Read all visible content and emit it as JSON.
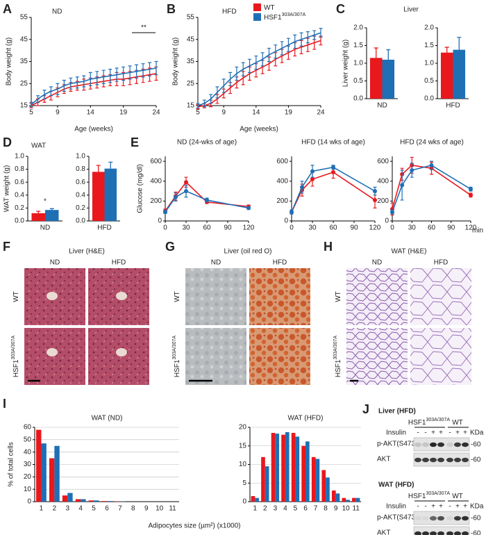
{
  "panel_labels": [
    "A",
    "B",
    "C",
    "D",
    "E",
    "F",
    "G",
    "H",
    "I",
    "J"
  ],
  "chart_data": [
    {
      "type": "line",
      "title": "ND",
      "xlabel": "Age (weeks)",
      "ylabel": "Body weight (g)",
      "annotation": "**",
      "x": [
        5,
        6,
        7,
        8,
        9,
        10,
        11,
        12,
        13,
        14,
        15,
        16,
        17,
        18,
        19,
        20,
        21,
        22,
        23,
        24
      ],
      "xlim": [
        5,
        24
      ],
      "xticks": [
        5,
        9,
        14,
        19,
        24
      ],
      "ylim": [
        15,
        55
      ],
      "yticks": [
        15,
        25,
        35,
        45,
        55
      ],
      "series": [
        {
          "color": "#e8181d",
          "values": [
            15,
            16.5,
            18,
            19.5,
            21,
            22.5,
            23.5,
            24,
            24.5,
            25,
            25.5,
            26,
            26.5,
            27,
            27,
            27.5,
            28,
            28.5,
            29,
            29.5
          ],
          "errors": [
            1,
            1.5,
            1.5,
            2,
            2,
            2,
            2,
            2,
            2.5,
            2.5,
            2.5,
            2.5,
            2.5,
            3,
            3,
            3,
            3,
            3,
            3,
            3
          ]
        },
        {
          "color": "#1f6fb5",
          "values": [
            15.5,
            18,
            20,
            21.5,
            22.5,
            24,
            25,
            25.5,
            26,
            27,
            27.5,
            28,
            28.5,
            29,
            29.5,
            30,
            30.5,
            31,
            31.5,
            32
          ],
          "errors": [
            1,
            1.5,
            2,
            2,
            2.5,
            2.5,
            2.5,
            2.5,
            2.5,
            3,
            3,
            3,
            3,
            3,
            3,
            3,
            3,
            3,
            3,
            3
          ]
        }
      ]
    },
    {
      "type": "line",
      "title": "HFD",
      "xlabel": "Age (weeks)",
      "ylabel": "Body weight (g)",
      "x": [
        5,
        6,
        7,
        8,
        9,
        10,
        11,
        12,
        13,
        14,
        15,
        16,
        17,
        18,
        19,
        20,
        21,
        22,
        23,
        24
      ],
      "xlim": [
        5,
        24
      ],
      "xticks": [
        5,
        9,
        14,
        19,
        24
      ],
      "ylim": [
        15,
        55
      ],
      "yticks": [
        15,
        25,
        35,
        45,
        55
      ],
      "series": [
        {
          "name": "WT",
          "color": "#e8181d",
          "values": [
            14.5,
            15,
            16,
            18,
            20.5,
            23,
            25.5,
            27.5,
            29.5,
            31,
            32.5,
            34,
            36,
            37.5,
            39,
            40.5,
            41.5,
            42.5,
            43.5,
            44.5
          ],
          "errors": [
            1,
            1,
            1.5,
            2,
            2,
            2.5,
            2.5,
            3,
            3,
            3,
            3,
            3,
            3,
            3,
            3,
            3,
            3,
            3,
            3,
            2
          ]
        },
        {
          "name": "HSF1",
          "name_sup": "303A/307A",
          "color": "#1f6fb5",
          "values": [
            15,
            16,
            18,
            21,
            24,
            27,
            29.5,
            31.5,
            33,
            34.5,
            36,
            38,
            39.5,
            41,
            42.5,
            44,
            45,
            46,
            47,
            48
          ],
          "errors": [
            1,
            1.5,
            2,
            2.5,
            3,
            3,
            3,
            3,
            3,
            3,
            3,
            3,
            3,
            3,
            3,
            3,
            3,
            2.5,
            2,
            2
          ]
        }
      ]
    },
    {
      "type": "bar",
      "title": "Liver",
      "ylabel": "Liver weight (g)",
      "categories": [
        "ND"
      ],
      "ylim": [
        0,
        2
      ],
      "yticks": [
        {
          "value": 0,
          "label": "0.0"
        },
        0.5,
        {
          "value": 1,
          "label": "1.0"
        },
        1.5,
        {
          "value": 2,
          "label": "2.0"
        }
      ],
      "series": [
        {
          "color": "#e8181d",
          "values": [
            1.15
          ],
          "errors": [
            0.28
          ]
        },
        {
          "color": "#1f6fb5",
          "values": [
            1.1
          ],
          "errors": [
            0.28
          ]
        }
      ]
    },
    {
      "type": "bar",
      "categories": [
        "HFD"
      ],
      "ylim": [
        0,
        2
      ],
      "yticks": [
        {
          "value": 0,
          "label": "0.0"
        },
        0.5,
        {
          "value": 1,
          "label": "1.0"
        },
        1.5,
        {
          "value": 2,
          "label": "2.0"
        }
      ],
      "series": [
        {
          "color": "#e8181d",
          "values": [
            1.3
          ],
          "errors": [
            0.15
          ]
        },
        {
          "color": "#1f6fb5",
          "values": [
            1.38
          ],
          "errors": [
            0.35
          ]
        }
      ]
    },
    {
      "type": "bar",
      "title": "WAT",
      "ylabel": "WAT weight (g)",
      "annotation": "*",
      "categories": [
        "ND"
      ],
      "ylim": [
        0,
        1
      ],
      "yticks": [
        {
          "value": 0,
          "label": "0.0"
        },
        0.2,
        0.4,
        0.6,
        0.8,
        {
          "value": 1,
          "label": "1.0"
        }
      ],
      "series": [
        {
          "color": "#e8181d",
          "values": [
            0.12
          ],
          "errors": [
            0.03
          ]
        },
        {
          "color": "#1f6fb5",
          "values": [
            0.17
          ],
          "errors": [
            0.02
          ]
        }
      ]
    },
    {
      "type": "bar",
      "categories": [
        "HFD"
      ],
      "ylim": [
        0,
        1
      ],
      "yticks": [
        {
          "value": 0,
          "label": "0.0"
        },
        0.2,
        0.4,
        0.6,
        0.8,
        {
          "value": 1,
          "label": "1.0"
        }
      ],
      "series": [
        {
          "color": "#e8181d",
          "values": [
            0.76
          ],
          "errors": [
            0.1
          ]
        },
        {
          "color": "#1f6fb5",
          "values": [
            0.81
          ],
          "errors": [
            0.1
          ]
        }
      ]
    },
    {
      "type": "line",
      "markers": true,
      "title": "ND (24-wks of age)",
      "ylabel": "Glucose (mg/dl)",
      "x": [
        0,
        15,
        30,
        60,
        120
      ],
      "xlim": [
        0,
        120
      ],
      "xticks": [
        0,
        30,
        60,
        90,
        120
      ],
      "ylim": [
        0,
        650
      ],
      "yticks": [
        0,
        200,
        400,
        600
      ],
      "series": [
        {
          "color": "#e8181d",
          "values": [
            100,
            250,
            390,
            190,
            145
          ],
          "errors": [
            20,
            40,
            50,
            15,
            15
          ]
        },
        {
          "color": "#1f6fb5",
          "values": [
            90,
            240,
            300,
            210,
            130
          ],
          "errors": [
            15,
            40,
            60,
            20,
            15
          ]
        }
      ]
    },
    {
      "type": "line",
      "markers": true,
      "title": "HFD (14 wks of age)",
      "x": [
        0,
        15,
        30,
        60,
        120
      ],
      "xlim": [
        0,
        120
      ],
      "xticks": [
        0,
        30,
        60,
        90,
        120
      ],
      "ylim": [
        0,
        650
      ],
      "yticks": [
        0,
        200,
        400,
        600
      ],
      "series": [
        {
          "color": "#e8181d",
          "values": [
            90,
            310,
            420,
            490,
            210
          ],
          "errors": [
            20,
            60,
            70,
            60,
            80
          ]
        },
        {
          "color": "#1f6fb5",
          "values": [
            90,
            340,
            500,
            540,
            300
          ],
          "errors": [
            20,
            60,
            60,
            20,
            40
          ]
        }
      ]
    },
    {
      "type": "line",
      "markers": true,
      "title": "HFD (24 wks of age)",
      "xunit": "min",
      "x": [
        0,
        15,
        30,
        60,
        120
      ],
      "xlim": [
        0,
        120
      ],
      "xticks": [
        0,
        30,
        60,
        90,
        120
      ],
      "ylim": [
        0,
        650
      ],
      "yticks": [
        0,
        200,
        400,
        600
      ],
      "series": [
        {
          "color": "#e8181d",
          "values": [
            120,
            470,
            560,
            530,
            260
          ],
          "errors": [
            60,
            60,
            80,
            60,
            20
          ]
        },
        {
          "color": "#1f6fb5",
          "values": [
            90,
            360,
            510,
            560,
            320
          ],
          "errors": [
            20,
            150,
            70,
            40,
            20
          ]
        }
      ]
    },
    {
      "type": "bar",
      "grid": true,
      "title": "WAT (ND)",
      "ylabel": "% of total cells",
      "xlabel": "Adipocytes size (µm²) (x1000)",
      "categories": [
        "1",
        "2",
        "3",
        "4",
        "5",
        "6",
        "7",
        "8",
        "9",
        "10",
        "11"
      ],
      "ylim": [
        0,
        60
      ],
      "yticks": [
        0,
        10,
        20,
        30,
        40,
        50,
        60
      ],
      "series": [
        {
          "color": "#e8181d",
          "values": [
            58,
            35,
            5,
            2,
            1,
            0.5,
            0.3,
            0,
            0,
            0,
            0
          ]
        },
        {
          "color": "#1f6fb5",
          "values": [
            47,
            45,
            7,
            2,
            1,
            0.5,
            0.2,
            0,
            0,
            0,
            0
          ]
        }
      ]
    },
    {
      "type": "bar",
      "grid": true,
      "title": "WAT (HFD)",
      "categories": [
        "1",
        "2",
        "3",
        "4",
        "5",
        "6",
        "7",
        "8",
        "9",
        "10",
        "11"
      ],
      "ylim": [
        0,
        20
      ],
      "yticks": [
        0,
        5,
        10,
        15,
        20
      ],
      "series": [
        {
          "color": "#e8181d",
          "values": [
            1.5,
            12,
            18.5,
            18,
            18.5,
            15,
            12,
            8.5,
            3,
            1,
            1
          ]
        },
        {
          "color": "#1f6fb5",
          "values": [
            1,
            9.5,
            18.3,
            18.7,
            17.5,
            16.2,
            11.5,
            6.5,
            2.2,
            0.5,
            1
          ]
        }
      ]
    }
  ],
  "micrographs": [
    {
      "title": "Liver (H&E)",
      "columns": [
        "ND",
        "HFD"
      ],
      "rows": [
        {
          "text": "WT"
        },
        {
          "text": "HSF1",
          "sup": "303A/307A"
        }
      ]
    },
    {
      "title": "Liver (oil red O)",
      "columns": [
        "ND",
        "HFD"
      ],
      "rows": [
        {
          "text": "WT"
        },
        {
          "text": "HSF1",
          "sup": "303A/307A"
        }
      ]
    },
    {
      "title": "WAT (H&E)",
      "columns": [
        "ND",
        "HFD"
      ],
      "rows": [
        {
          "text": "WT"
        },
        {
          "text": "HSF1",
          "sup": "303A/307A"
        }
      ]
    }
  ],
  "blots": [
    {
      "title": "Liver (HFD)",
      "groups": [
        {
          "text": "HSF1",
          "sup": "303A/307A"
        },
        {
          "text": "WT"
        }
      ],
      "treatment": "Insulin",
      "lanes": [
        "-",
        "-",
        "+",
        "+",
        "-",
        "+",
        "+"
      ],
      "unit": "KDa",
      "rows": [
        "p-AKT(S473)",
        "AKT"
      ],
      "marker": "-60"
    },
    {
      "title": "WAT (HFD)",
      "groups": [
        {
          "text": "HSF1",
          "sup": "303A/307A"
        },
        {
          "text": "WT"
        }
      ],
      "treatment": "Insulin",
      "lanes": [
        "-",
        "-",
        "+",
        "+",
        "-",
        "+",
        "+"
      ],
      "unit": "KDa",
      "rows": [
        "p-AKT(S473)",
        "AKT"
      ],
      "marker": "-60"
    }
  ]
}
